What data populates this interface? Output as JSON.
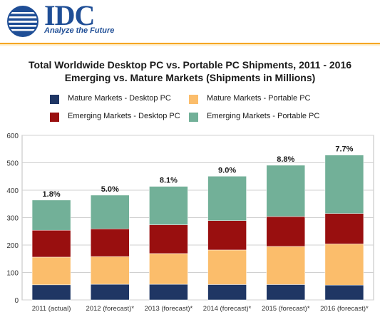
{
  "header": {
    "logo_text": "IDC",
    "tagline": "Analyze the Future"
  },
  "colors": {
    "mature_desktop": "#1f3664",
    "mature_portable": "#fbbd6b",
    "emerging_desktop": "#990f0f",
    "emerging_portable": "#72b098",
    "brand_blue": "#1f4e96",
    "accent_orange": "#f5a623"
  },
  "chart_data": {
    "type": "bar",
    "stacked": true,
    "title": "Total Worldwide Desktop PC vs. Portable PC Shipments, 2011 - 2016",
    "subtitle": "Emerging vs. Mature Markets (Shipments in Millions)",
    "categories": [
      "2011 (actual)",
      "2012 (forecast)*",
      "2013 (forecast)*",
      "2014 (forecast)*",
      "2015 (forecast)*",
      "2016 (forecast)*"
    ],
    "series": [
      {
        "name": "Mature Markets - Desktop PC",
        "values": [
          55,
          57,
          57,
          56,
          56,
          54
        ]
      },
      {
        "name": "Mature Markets - Portable PC",
        "values": [
          101,
          101,
          112,
          126,
          139,
          150
        ]
      },
      {
        "name": "Emerging Markets - Desktop PC",
        "values": [
          98,
          101,
          105,
          107,
          109,
          111
        ]
      },
      {
        "name": "Emerging Markets - Portable PC",
        "values": [
          110,
          123,
          140,
          162,
          187,
          213
        ]
      }
    ],
    "data_labels": [
      "1.8%",
      "5.0%",
      "8.1%",
      "9.0%",
      "8.8%",
      "7.7%"
    ],
    "ylim": [
      0,
      600
    ],
    "yticks": [
      0,
      100,
      200,
      300,
      400,
      500,
      600
    ],
    "xlabel": "",
    "ylabel": "",
    "grid": true,
    "legend_position": "top"
  }
}
